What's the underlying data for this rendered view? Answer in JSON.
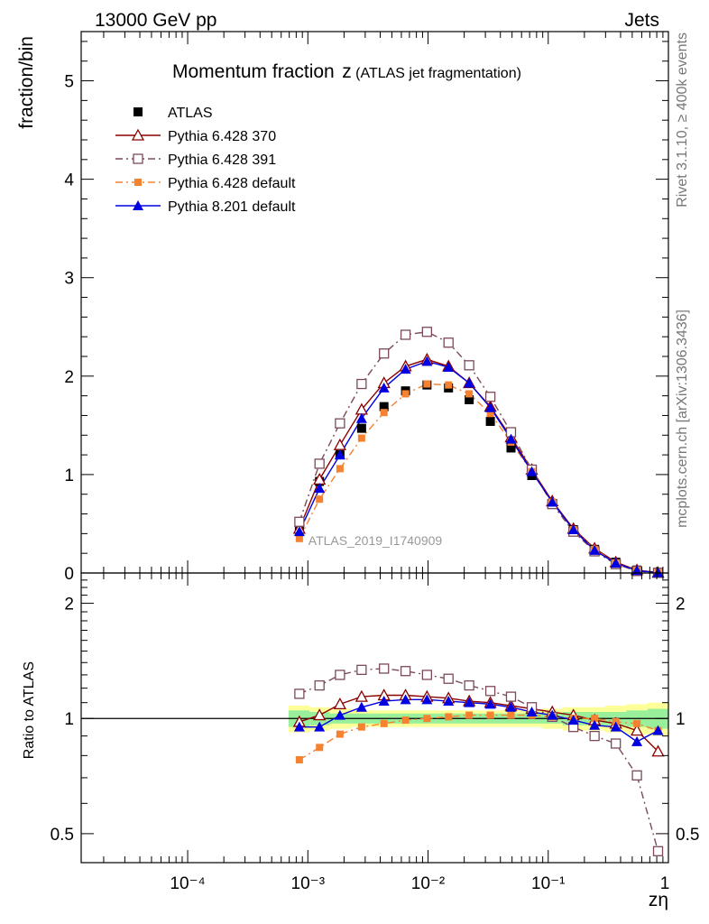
{
  "header": {
    "left": "13000 GeV pp",
    "right": "Jets"
  },
  "side_text": {
    "top": "Rivet 3.1.10, ≥ 400k events",
    "bottom": "mcplots.cern.ch [arXiv:1306.3436]"
  },
  "colors": {
    "atlas": "#000000",
    "p370": "#8b0000",
    "p391": "#7b4a58",
    "p6def": "#f58231",
    "p8def": "#0000e0",
    "band_inner": "#9af09a",
    "band_outer": "#ffff99"
  },
  "chart_data": [
    {
      "type": "scatter",
      "title": "Momentum fraction",
      "title_symbol": "z",
      "subtitle": "(ATLAS jet fragmentation)",
      "ylabel": "fraction/bin",
      "watermark": "ATLAS_2019_I1740909",
      "xscale": "log",
      "xlim": [
        1.3e-05,
        1.0
      ],
      "ylim": [
        0,
        5.5
      ],
      "yticks": [
        "0",
        "1",
        "2",
        "3",
        "4",
        "5"
      ],
      "legend_position": "top-left",
      "x": [
        0.00085,
        0.00125,
        0.00185,
        0.0028,
        0.0043,
        0.0065,
        0.0098,
        0.0148,
        0.022,
        0.033,
        0.049,
        0.073,
        0.108,
        0.162,
        0.243,
        0.365,
        0.547,
        0.82
      ],
      "series": [
        {
          "name": "ATLAS",
          "marker": "filled-square",
          "values": [
            0.45,
            0.93,
            1.2,
            1.47,
            1.69,
            1.85,
            1.91,
            1.88,
            1.76,
            1.54,
            1.27,
            0.99,
            0.7,
            0.44,
            0.24,
            0.11,
            0.03,
            0.005
          ]
        },
        {
          "name": "Pythia 6.428 370",
          "marker": "open-triangle",
          "values": [
            0.45,
            0.95,
            1.3,
            1.66,
            1.93,
            2.1,
            2.17,
            2.1,
            1.93,
            1.69,
            1.38,
            1.05,
            0.73,
            0.45,
            0.25,
            0.11,
            0.03,
            0.004
          ]
        },
        {
          "name": "Pythia 6.428 391",
          "marker": "open-square",
          "values": [
            0.52,
            1.11,
            1.52,
            1.92,
            2.23,
            2.42,
            2.45,
            2.34,
            2.11,
            1.79,
            1.43,
            1.05,
            0.7,
            0.42,
            0.22,
            0.09,
            0.02,
            0.002
          ]
        },
        {
          "name": "Pythia 6.428 default",
          "marker": "filled-small-square",
          "values": [
            0.35,
            0.75,
            1.06,
            1.37,
            1.63,
            1.82,
            1.92,
            1.91,
            1.82,
            1.62,
            1.33,
            1.03,
            0.72,
            0.44,
            0.24,
            0.1,
            0.028,
            0.004
          ]
        },
        {
          "name": "Pythia 8.201 default",
          "marker": "filled-triangle",
          "values": [
            0.42,
            0.86,
            1.2,
            1.57,
            1.88,
            2.07,
            2.15,
            2.09,
            1.93,
            1.68,
            1.36,
            1.03,
            0.72,
            0.44,
            0.23,
            0.1,
            0.025,
            0.004
          ]
        }
      ]
    },
    {
      "type": "scatter",
      "ylabel": "Ratio to ATLAS",
      "xlabel": "zη",
      "xscale": "log",
      "xlim": [
        1.3e-05,
        1.0
      ],
      "ylim": [
        0.42,
        2.4
      ],
      "yticks": [
        "0.5",
        "1",
        "2"
      ],
      "xticks": [
        "10⁻⁴",
        "10⁻³",
        "10⁻²",
        "10⁻¹",
        "1"
      ],
      "reference_line": 1,
      "x": [
        0.00085,
        0.00125,
        0.00185,
        0.0028,
        0.0043,
        0.0065,
        0.0098,
        0.0148,
        0.022,
        0.033,
        0.049,
        0.073,
        0.108,
        0.162,
        0.243,
        0.365,
        0.547,
        0.82
      ],
      "band_inner": [
        0.05,
        0.04,
        0.03,
        0.03,
        0.03,
        0.03,
        0.03,
        0.03,
        0.03,
        0.03,
        0.03,
        0.03,
        0.03,
        0.04,
        0.04,
        0.04,
        0.05,
        0.06
      ],
      "band_outer": [
        0.08,
        0.07,
        0.06,
        0.05,
        0.05,
        0.05,
        0.05,
        0.05,
        0.05,
        0.05,
        0.05,
        0.05,
        0.06,
        0.07,
        0.07,
        0.08,
        0.09,
        0.1
      ],
      "series": [
        {
          "name": "Pythia 6.428 370",
          "values": [
            0.98,
            1.02,
            1.09,
            1.14,
            1.15,
            1.15,
            1.14,
            1.13,
            1.11,
            1.1,
            1.08,
            1.06,
            1.04,
            1.02,
            0.99,
            0.97,
            0.93,
            0.82
          ]
        },
        {
          "name": "Pythia 6.428 391",
          "values": [
            1.16,
            1.22,
            1.3,
            1.34,
            1.35,
            1.33,
            1.3,
            1.27,
            1.22,
            1.18,
            1.14,
            1.07,
            1.01,
            0.95,
            0.9,
            0.86,
            0.71,
            0.45
          ]
        },
        {
          "name": "Pythia 6.428 default",
          "values": [
            0.78,
            0.84,
            0.91,
            0.95,
            0.97,
            0.99,
            1.0,
            1.01,
            1.02,
            1.02,
            1.02,
            1.02,
            1.01,
            1.0,
            1.0,
            0.98,
            0.97,
            0.93
          ]
        },
        {
          "name": "Pythia 8.201 default",
          "values": [
            0.95,
            0.95,
            1.02,
            1.07,
            1.11,
            1.12,
            1.12,
            1.11,
            1.1,
            1.09,
            1.07,
            1.04,
            1.02,
            0.99,
            0.96,
            0.95,
            0.87,
            0.93
          ]
        }
      ]
    }
  ]
}
